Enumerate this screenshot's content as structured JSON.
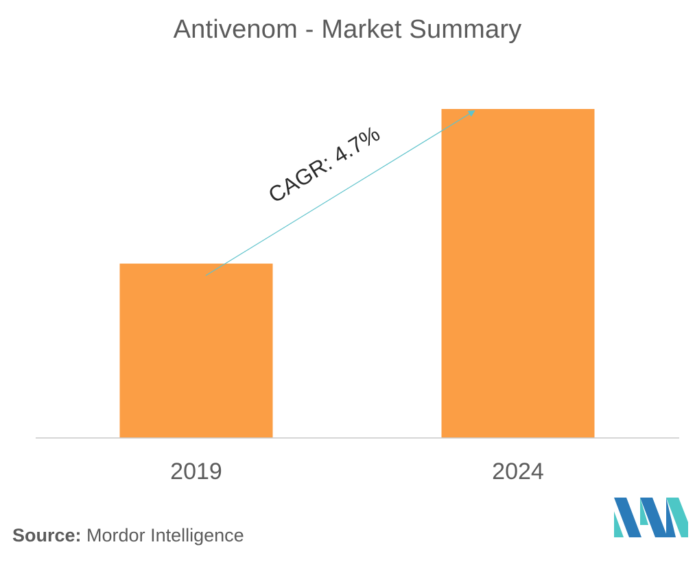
{
  "title": "Antivenom - Market Summary",
  "chart_data": {
    "type": "bar",
    "title": "Antivenom - Market Summary",
    "categories": [
      "2019",
      "2024"
    ],
    "values": [
      53,
      100
    ],
    "xlabel": "",
    "ylabel": "",
    "ylim": [
      0,
      100
    ],
    "grid": false,
    "legend": "none",
    "annotation": {
      "text": "CAGR: 4.7%",
      "type": "arrow"
    },
    "colors": {
      "bar": "#fb9e45",
      "arrow": "#5fc3cc",
      "axis": "#c8c8c8",
      "tick_label": "#5b5b5b"
    }
  },
  "source": {
    "label": "Source:",
    "text": "Mordor Intelligence"
  },
  "logo": {
    "icon": "mordor-intelligence-logo",
    "colors": [
      "#2b7bb9",
      "#4dc7c6"
    ]
  }
}
